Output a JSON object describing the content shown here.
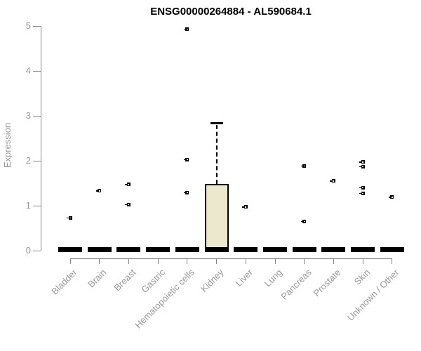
{
  "chart_data": {
    "type": "boxplot",
    "title": "ENSG00000264884 - AL590684.1",
    "ylabel": "Expression",
    "xlabel": "",
    "ylim": [
      0,
      5
    ],
    "yticks": [
      "0",
      "1",
      "2",
      "3",
      "4",
      "5"
    ],
    "grid": false,
    "legend": "none",
    "categories": [
      "Bladder",
      "Brain",
      "Breast",
      "Gastric",
      "Hematopoietic cells",
      "Kidney",
      "Liver",
      "Lung",
      "Pancreas",
      "Prostate",
      "Skin",
      "Unknown / Other"
    ],
    "boxes": [
      {
        "category": "Bladder",
        "whisker_low": 0,
        "q1": 0,
        "median": 0,
        "q3": 0,
        "whisker_high": 0,
        "outliers": [
          0.73
        ]
      },
      {
        "category": "Brain",
        "whisker_low": 0,
        "q1": 0,
        "median": 0,
        "q3": 0,
        "whisker_high": 0,
        "outliers": [
          1.33
        ]
      },
      {
        "category": "Breast",
        "whisker_low": 0,
        "q1": 0,
        "median": 0,
        "q3": 0,
        "whisker_high": 0,
        "outliers": [
          1.47,
          1.03
        ]
      },
      {
        "category": "Gastric",
        "whisker_low": 0,
        "q1": 0,
        "median": 0,
        "q3": 0,
        "whisker_high": 0,
        "outliers": []
      },
      {
        "category": "Hematopoietic cells",
        "whisker_low": 0,
        "q1": 0,
        "median": 0,
        "q3": 0,
        "whisker_high": 0,
        "outliers": [
          4.93,
          2.03,
          1.29
        ]
      },
      {
        "category": "Kidney",
        "whisker_low": 0,
        "q1": 0,
        "median": 0,
        "q3": 1.49,
        "whisker_high": 2.84,
        "outliers": []
      },
      {
        "category": "Liver",
        "whisker_low": 0,
        "q1": 0,
        "median": 0,
        "q3": 0,
        "whisker_high": 0,
        "outliers": [
          0.97
        ]
      },
      {
        "category": "Lung",
        "whisker_low": 0,
        "q1": 0,
        "median": 0,
        "q3": 0,
        "whisker_high": 0,
        "outliers": []
      },
      {
        "category": "Pancreas",
        "whisker_low": 0,
        "q1": 0,
        "median": 0,
        "q3": 0,
        "whisker_high": 0,
        "outliers": [
          1.89,
          0.65
        ]
      },
      {
        "category": "Prostate",
        "whisker_low": 0,
        "q1": 0,
        "median": 0,
        "q3": 0,
        "whisker_high": 0,
        "outliers": [
          1.55
        ]
      },
      {
        "category": "Skin",
        "whisker_low": 0,
        "q1": 0,
        "median": 0,
        "q3": 0,
        "whisker_high": 0,
        "outliers": [
          1.97,
          1.87,
          1.4,
          1.28
        ]
      },
      {
        "category": "Unknown / Other",
        "whisker_low": 0,
        "q1": 0,
        "median": 0,
        "q3": 0,
        "whisker_high": 0,
        "outliers": [
          1.19
        ]
      }
    ],
    "colors": {
      "box_fill": "#ece8cd",
      "box_border": "#000000",
      "median_bar": "#000000",
      "whisker": "#000000",
      "outlier": "#000000",
      "axis_line": "#888888",
      "axis_text": "#979797",
      "title_text": "#000000",
      "background": "#ffffff"
    }
  }
}
